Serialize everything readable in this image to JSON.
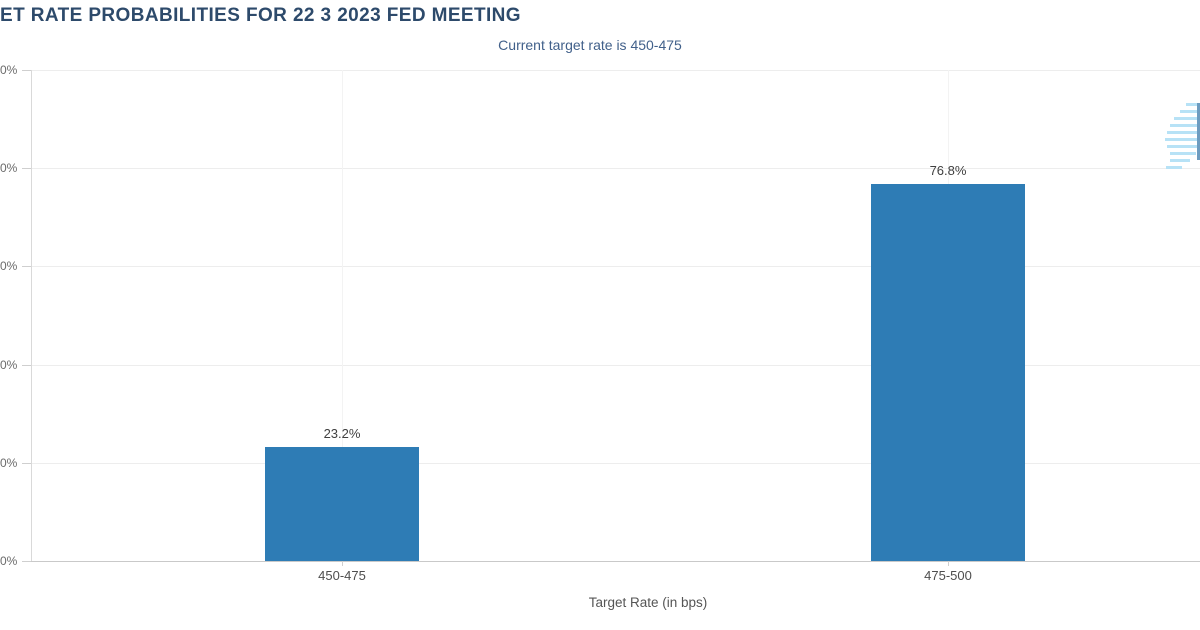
{
  "page": {
    "title": "ET RATE PROBABILITIES FOR 22 3 2023 FED MEETING",
    "subtitle": "Current target rate is 450-475"
  },
  "chart_data": {
    "type": "bar",
    "title_visible": "ET RATE PROBABILITIES FOR 22 3 2023 FED MEETING",
    "subtitle": "Current target rate is 450-475",
    "categories": [
      "450-475",
      "475-500"
    ],
    "values": [
      23.2,
      76.8
    ],
    "value_labels": [
      "23.2%",
      "76.8%"
    ],
    "xlabel": "Target Rate (in bps)",
    "ylabel": "",
    "ylim": [
      0,
      100
    ],
    "yticks_implied": [
      0,
      20,
      40,
      60,
      80,
      100
    ],
    "ytick_labels_visible": [
      "0%",
      "0%",
      "0%",
      "0%",
      "0%",
      "0%"
    ],
    "grid": true,
    "legend": false,
    "bar_color": "#2e7cb5"
  },
  "colors": {
    "title": "#2d4a6b",
    "subtitle": "#41608a",
    "bar": "#2e7cb5",
    "value_label": "#3f3f3f",
    "tick_label": "#6b6b6b",
    "axis_label": "#555555",
    "gridline": "#ededed",
    "axis_line": "#c9c9c9",
    "watermark_stripe": "#b7e2f6",
    "watermark_dark": "#6d9cc0"
  },
  "watermark": {
    "name": "striped-globe-logo"
  }
}
